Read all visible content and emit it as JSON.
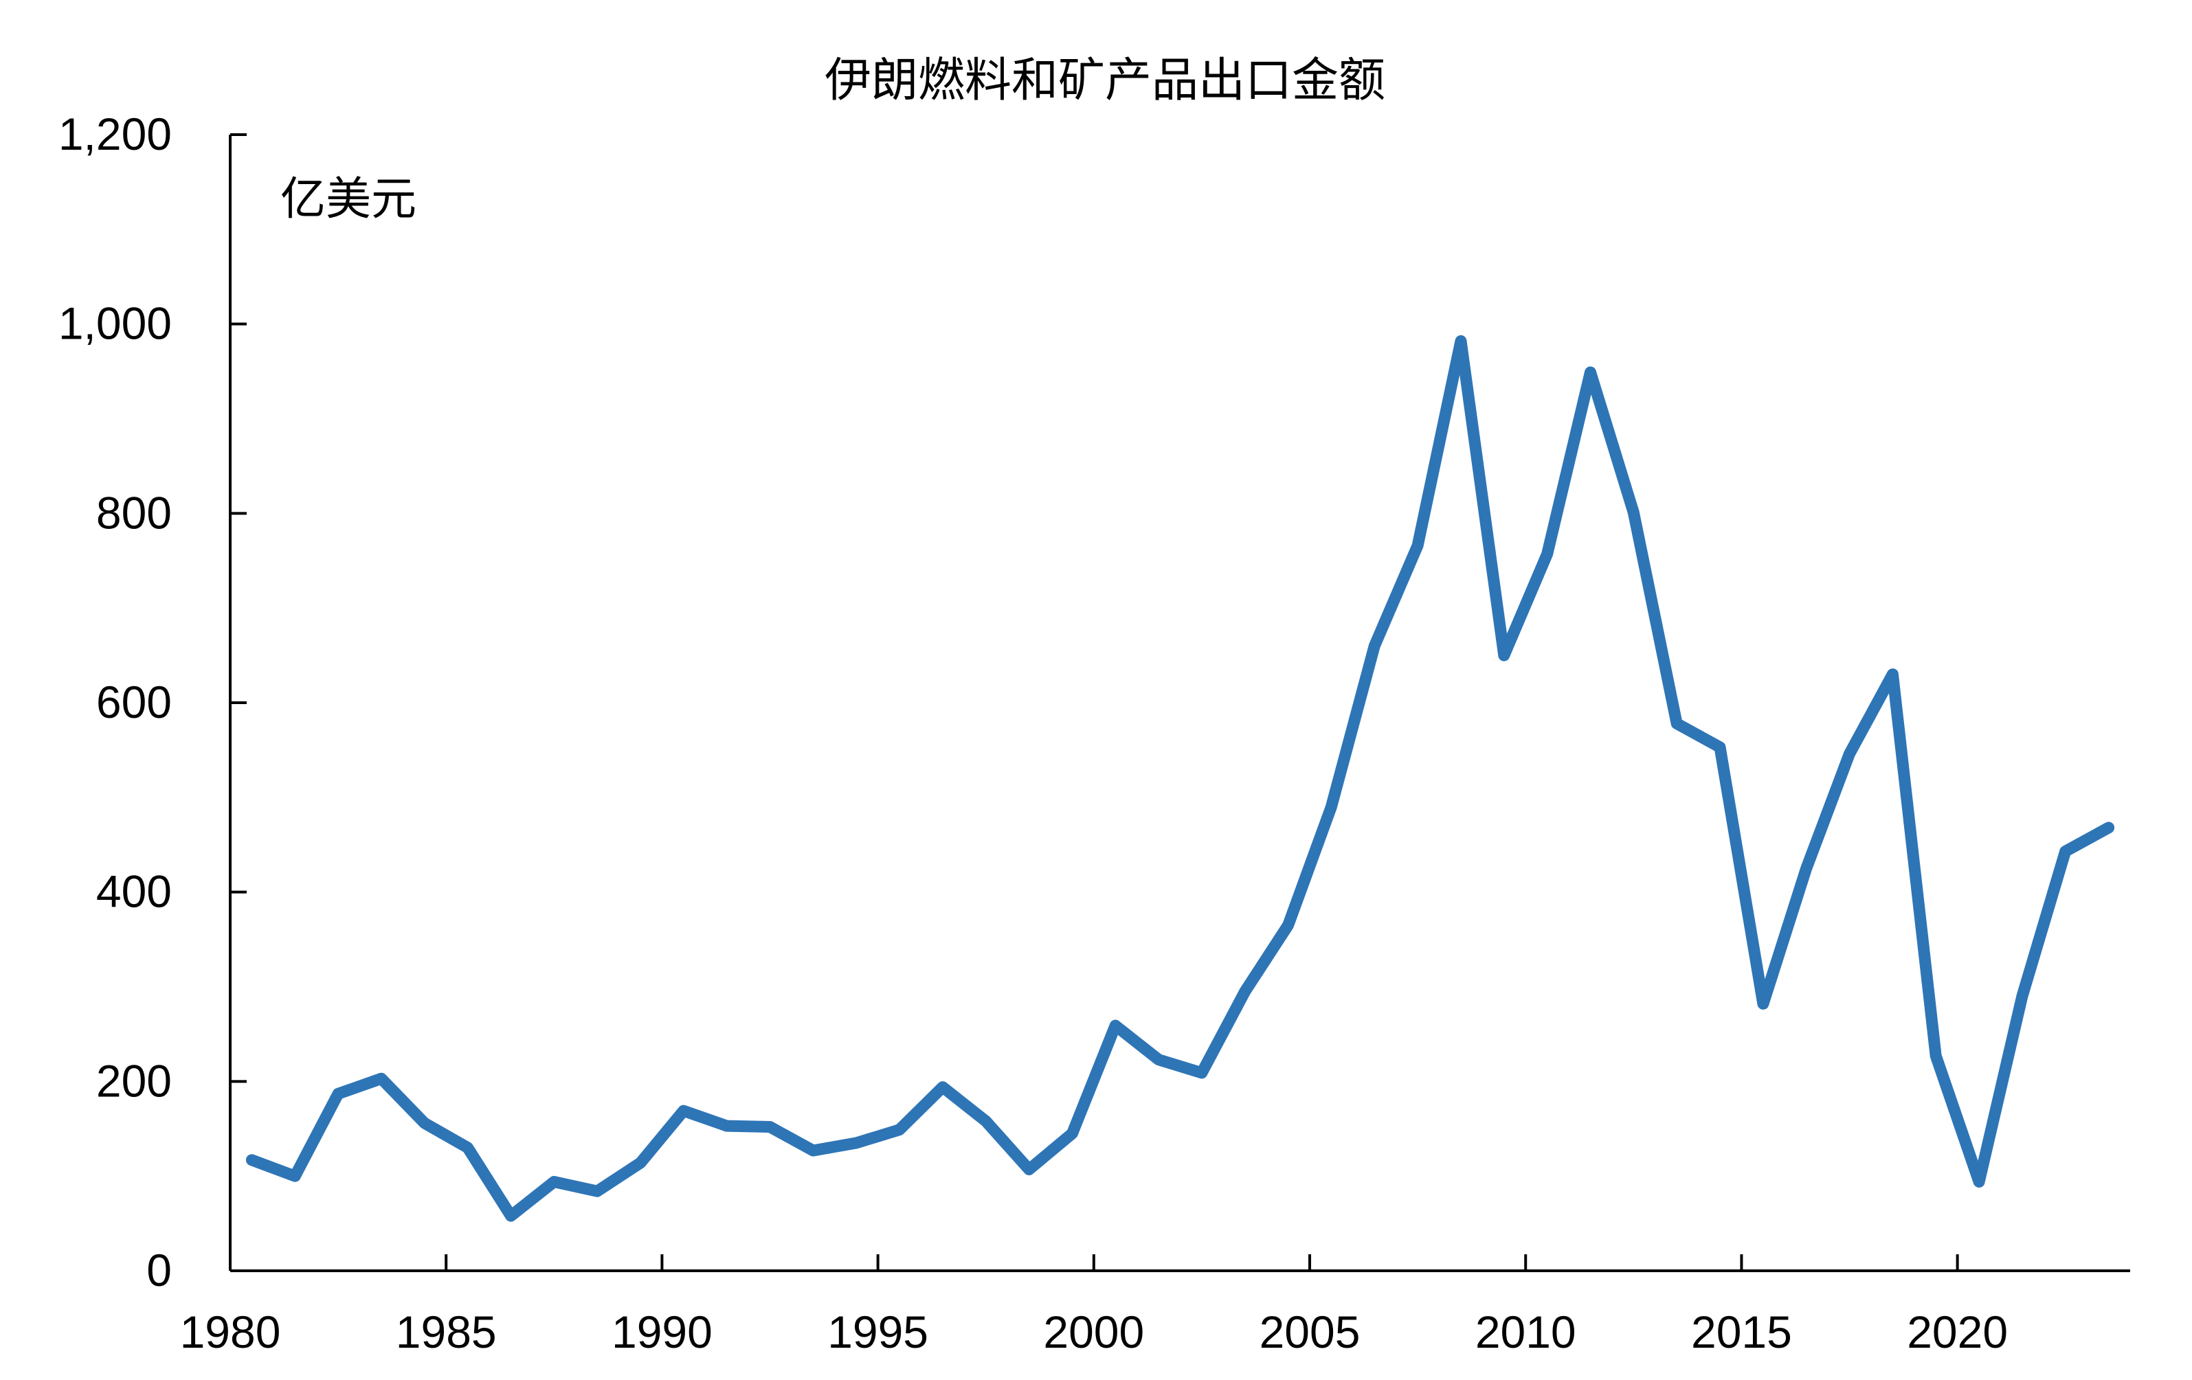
{
  "chart_data": {
    "type": "line",
    "title": "伊朗燃料和矿产品出口金额",
    "unit_label": "亿美元",
    "xlabel": "",
    "ylabel": "",
    "xlim": [
      1980,
      2024
    ],
    "ylim": [
      0,
      1200
    ],
    "x_ticks": [
      1980,
      1985,
      1990,
      1995,
      2000,
      2005,
      2010,
      2015,
      2020
    ],
    "y_ticks": [
      0,
      200,
      400,
      600,
      800,
      1000,
      1200
    ],
    "y_tick_labels": [
      "0",
      "200",
      "400",
      "600",
      "800",
      "1,000",
      "1,200"
    ],
    "grid": false,
    "legend": "none",
    "series": [
      {
        "color": "#2e75b6",
        "x": [
          1980,
          1981,
          1982,
          1983,
          1984,
          1985,
          1986,
          1987,
          1988,
          1989,
          1990,
          1991,
          1992,
          1993,
          1994,
          1995,
          1996,
          1997,
          1998,
          1999,
          2000,
          2001,
          2002,
          2003,
          2004,
          2005,
          2006,
          2007,
          2008,
          2009,
          2010,
          2011,
          2012,
          2013,
          2014,
          2015,
          2016,
          2017,
          2018,
          2019,
          2020,
          2021,
          2022,
          2023
        ],
        "values": [
          117,
          100,
          187,
          203,
          156,
          130,
          58,
          94,
          84,
          114,
          169,
          153,
          152,
          127,
          135,
          149,
          194,
          158,
          107,
          145,
          259,
          223,
          209,
          295,
          365,
          490,
          660,
          766,
          982,
          650,
          757,
          949,
          801,
          578,
          553,
          282,
          425,
          546,
          630,
          227,
          94,
          290,
          443,
          468
        ]
      }
    ]
  }
}
